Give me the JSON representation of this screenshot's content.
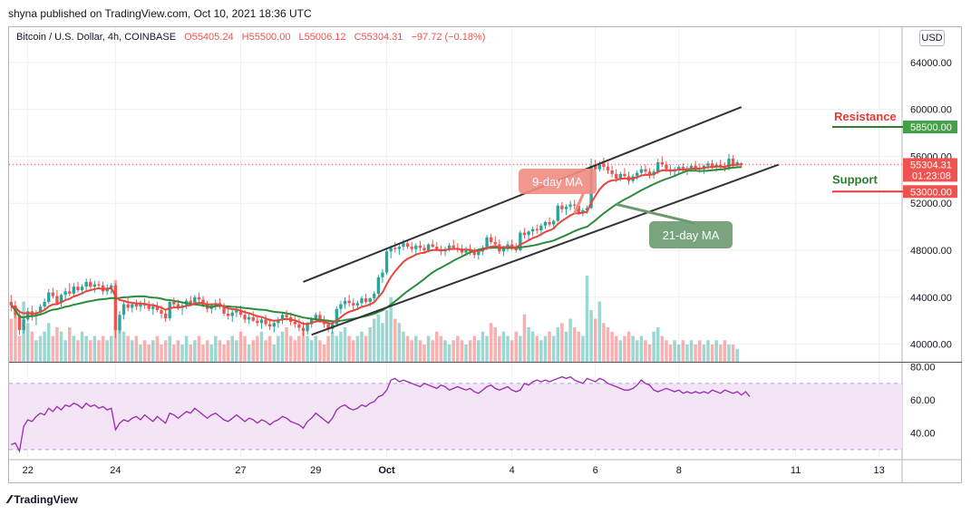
{
  "publisher_line": "shyna published on TradingView.com, Oct 10, 2021 18:36 UTC",
  "symbol": {
    "name": "Bitcoin / U.S. Dollar, 4h, COINBASE",
    "open": "O55405.24",
    "high": "H55500.00",
    "low": "L55006.12",
    "close": "C55304.31",
    "change": "−97.72 (−0.18%)"
  },
  "currency_button": "USD",
  "footer_brand": "TradingView",
  "colors": {
    "up": "#26a69a",
    "down": "#ef5350",
    "ma9": "#e8453c",
    "ma21": "#2e8b3e",
    "channel": "#333333",
    "rsi": "#9c27b0",
    "rsi_band": "#f3e5f5",
    "resistance": "#e53935",
    "support": "#2e7d32"
  },
  "chart_data": {
    "type": "candlestick",
    "title": "Bitcoin / U.S. Dollar, 4h, COINBASE",
    "y_ticks": [
      40000,
      44000,
      48000,
      52000,
      56000,
      60000,
      64000
    ],
    "y_tick_labels": [
      "40000.00",
      "44000.00",
      "48000.00",
      "52000.00",
      "56000.00",
      "60000.00",
      "64000.00"
    ],
    "ylim": [
      38500,
      67000
    ],
    "x_tick_labels": [
      "22",
      "24",
      "27",
      "29",
      "Oct",
      "4",
      "6",
      "8",
      "11",
      "13"
    ],
    "x_tick_index": [
      4,
      25,
      55,
      73,
      90,
      120,
      140,
      160,
      188,
      208
    ],
    "x_total_slots": 214,
    "candles": [
      [
        43600,
        44200,
        42800,
        43300
      ],
      [
        43300,
        43700,
        42200,
        42500
      ],
      [
        42500,
        42900,
        40800,
        41200
      ],
      [
        41200,
        42300,
        40900,
        42100
      ],
      [
        42100,
        43100,
        41900,
        42800
      ],
      [
        42800,
        43300,
        42000,
        42400
      ],
      [
        42400,
        42900,
        41600,
        42700
      ],
      [
        42700,
        43400,
        42500,
        43200
      ],
      [
        43200,
        43900,
        42900,
        43600
      ],
      [
        43600,
        44700,
        43400,
        44400
      ],
      [
        44400,
        44800,
        43900,
        44100
      ],
      [
        44100,
        44600,
        43300,
        43500
      ],
      [
        43500,
        44300,
        43200,
        44200
      ],
      [
        44200,
        44800,
        43800,
        44500
      ],
      [
        44500,
        45200,
        44100,
        44300
      ],
      [
        44300,
        45200,
        44000,
        44900
      ],
      [
        44900,
        45300,
        44400,
        44600
      ],
      [
        44600,
        45100,
        44300,
        44900
      ],
      [
        44900,
        45600,
        44600,
        45300
      ],
      [
        45300,
        45600,
        44700,
        44900
      ],
      [
        44900,
        45400,
        44400,
        45100
      ],
      [
        45100,
        45400,
        44800,
        45000
      ],
      [
        45000,
        45300,
        44200,
        44500
      ],
      [
        44500,
        45100,
        44200,
        44800
      ],
      [
        44800,
        45200,
        44300,
        45000
      ],
      [
        45000,
        45200,
        40500,
        41200
      ],
      [
        41200,
        42800,
        40900,
        42500
      ],
      [
        42500,
        43600,
        42100,
        43400
      ],
      [
        43400,
        43900,
        42800,
        43100
      ],
      [
        43100,
        43600,
        42700,
        43400
      ],
      [
        43400,
        43800,
        42900,
        43200
      ],
      [
        43200,
        43700,
        42800,
        43500
      ],
      [
        43500,
        43900,
        43000,
        43300
      ],
      [
        43300,
        43700,
        42800,
        43000
      ],
      [
        43000,
        43500,
        42500,
        43200
      ],
      [
        43200,
        43600,
        42700,
        42900
      ],
      [
        42900,
        43300,
        42200,
        42600
      ],
      [
        42600,
        43000,
        41900,
        42200
      ],
      [
        42200,
        43800,
        42000,
        43600
      ],
      [
        43600,
        44000,
        43100,
        43400
      ],
      [
        43400,
        43800,
        42900,
        43100
      ],
      [
        43100,
        43500,
        42500,
        43300
      ],
      [
        43300,
        43900,
        43000,
        43700
      ],
      [
        43700,
        44100,
        43300,
        43500
      ],
      [
        43500,
        44200,
        43300,
        44000
      ],
      [
        44000,
        44400,
        43500,
        43800
      ],
      [
        43800,
        44100,
        43100,
        43400
      ],
      [
        43400,
        43700,
        42700,
        43000
      ],
      [
        43000,
        43500,
        42600,
        43300
      ],
      [
        43300,
        43800,
        42900,
        43500
      ],
      [
        43500,
        43900,
        43000,
        43200
      ],
      [
        43200,
        43500,
        42400,
        42600
      ],
      [
        42600,
        43000,
        42100,
        42400
      ],
      [
        42400,
        42900,
        41900,
        42700
      ],
      [
        42700,
        43200,
        42300,
        42900
      ],
      [
        42900,
        43300,
        42300,
        42500
      ],
      [
        42500,
        42900,
        41800,
        42100
      ],
      [
        42100,
        42600,
        41700,
        42300
      ],
      [
        42300,
        42800,
        41900,
        42000
      ],
      [
        42000,
        42500,
        41500,
        41800
      ],
      [
        41800,
        42300,
        41300,
        42100
      ],
      [
        42100,
        42500,
        41500,
        41700
      ],
      [
        41700,
        42200,
        41200,
        41500
      ],
      [
        41500,
        42000,
        41000,
        41800
      ],
      [
        41800,
        42300,
        41400,
        42100
      ],
      [
        42100,
        42700,
        41700,
        42500
      ],
      [
        42500,
        42900,
        42000,
        42300
      ],
      [
        42300,
        42700,
        41600,
        41900
      ],
      [
        41900,
        42400,
        41400,
        41700
      ],
      [
        41700,
        42200,
        41100,
        41400
      ],
      [
        41400,
        41900,
        40700,
        41100
      ],
      [
        41100,
        41900,
        40800,
        41700
      ],
      [
        41700,
        42300,
        41400,
        42100
      ],
      [
        42100,
        42700,
        41800,
        42500
      ],
      [
        42500,
        42800,
        41800,
        42000
      ],
      [
        42000,
        42400,
        41400,
        41700
      ],
      [
        41700,
        42100,
        41000,
        41300
      ],
      [
        41300,
        41900,
        40900,
        41700
      ],
      [
        41700,
        43200,
        41500,
        43000
      ],
      [
        43000,
        43700,
        42600,
        43400
      ],
      [
        43400,
        44000,
        43000,
        43700
      ],
      [
        43700,
        44200,
        43200,
        43500
      ],
      [
        43500,
        43900,
        42900,
        43300
      ],
      [
        43300,
        43700,
        42900,
        43500
      ],
      [
        43500,
        44100,
        43200,
        43900
      ],
      [
        43900,
        44300,
        43400,
        43600
      ],
      [
        43600,
        44000,
        43200,
        43900
      ],
      [
        43900,
        44500,
        43700,
        44300
      ],
      [
        44300,
        45900,
        44100,
        45700
      ],
      [
        45700,
        46400,
        45200,
        46100
      ],
      [
        46100,
        48200,
        45900,
        47900
      ],
      [
        47900,
        48400,
        47300,
        48200
      ],
      [
        48200,
        48700,
        47800,
        48100
      ],
      [
        48100,
        48500,
        47600,
        48300
      ],
      [
        48300,
        48900,
        48000,
        48600
      ],
      [
        48600,
        48900,
        48100,
        48300
      ],
      [
        48300,
        48700,
        47800,
        48100
      ],
      [
        48100,
        48600,
        47700,
        48400
      ],
      [
        48400,
        48800,
        47900,
        48200
      ],
      [
        48200,
        48500,
        47700,
        48000
      ],
      [
        48000,
        48600,
        47800,
        48500
      ],
      [
        48500,
        48900,
        48200,
        48300
      ],
      [
        48300,
        48700,
        47900,
        48100
      ],
      [
        48100,
        48400,
        47600,
        47900
      ],
      [
        47900,
        48300,
        47500,
        48100
      ],
      [
        48100,
        48600,
        47900,
        48400
      ],
      [
        48400,
        48900,
        48100,
        48200
      ],
      [
        48200,
        48600,
        47800,
        48100
      ],
      [
        48100,
        48500,
        47600,
        47800
      ],
      [
        47800,
        48300,
        47500,
        48100
      ],
      [
        48100,
        48500,
        47600,
        47900
      ],
      [
        47900,
        48200,
        47300,
        47600
      ],
      [
        47600,
        48100,
        47200,
        47900
      ],
      [
        47900,
        48400,
        47600,
        48200
      ],
      [
        48200,
        49300,
        48000,
        49100
      ],
      [
        49100,
        49400,
        48500,
        48700
      ],
      [
        48700,
        49200,
        48200,
        48500
      ],
      [
        48500,
        48900,
        47700,
        47900
      ],
      [
        47900,
        48400,
        47500,
        48200
      ],
      [
        48200,
        48800,
        47900,
        48500
      ],
      [
        48500,
        48900,
        48000,
        48300
      ],
      [
        48300,
        48600,
        47800,
        48000
      ],
      [
        48000,
        49700,
        47900,
        49500
      ],
      [
        49500,
        49900,
        49000,
        49300
      ],
      [
        49300,
        49700,
        48900,
        49600
      ],
      [
        49600,
        50000,
        49200,
        49800
      ],
      [
        49800,
        50200,
        49400,
        49700
      ],
      [
        49700,
        50300,
        49400,
        50100
      ],
      [
        50100,
        50500,
        49800,
        50400
      ],
      [
        50400,
        50800,
        50000,
        50200
      ],
      [
        50200,
        50600,
        49900,
        50500
      ],
      [
        50500,
        52000,
        50400,
        51800
      ],
      [
        51800,
        52100,
        51200,
        51500
      ],
      [
        51500,
        51900,
        51000,
        51700
      ],
      [
        51700,
        52200,
        51400,
        51900
      ],
      [
        51900,
        52300,
        51500,
        51800
      ],
      [
        51800,
        51900,
        51000,
        51200
      ],
      [
        51200,
        51600,
        50900,
        51400
      ],
      [
        51400,
        51800,
        51100,
        51600
      ],
      [
        51600,
        55800,
        51500,
        55200
      ],
      [
        55200,
        55700,
        54600,
        54900
      ],
      [
        54900,
        55600,
        54700,
        55400
      ],
      [
        55400,
        55900,
        54800,
        55100
      ],
      [
        55100,
        55500,
        54500,
        54800
      ],
      [
        54800,
        55200,
        54200,
        54500
      ],
      [
        54500,
        54900,
        53800,
        54100
      ],
      [
        54100,
        54700,
        53900,
        54500
      ],
      [
        54500,
        55000,
        54100,
        54300
      ],
      [
        54300,
        54700,
        53600,
        53900
      ],
      [
        53900,
        54500,
        53700,
        54300
      ],
      [
        54300,
        54800,
        54000,
        54600
      ],
      [
        54600,
        55200,
        54300,
        54900
      ],
      [
        54900,
        55300,
        54400,
        54700
      ],
      [
        54700,
        55000,
        54100,
        54400
      ],
      [
        54400,
        54900,
        54100,
        54700
      ],
      [
        54700,
        55800,
        54500,
        55500
      ],
      [
        55500,
        56000,
        55100,
        55300
      ],
      [
        55300,
        55600,
        54700,
        54900
      ],
      [
        54900,
        55300,
        54400,
        54700
      ],
      [
        54700,
        55100,
        54300,
        54900
      ],
      [
        54900,
        55300,
        54500,
        55100
      ],
      [
        55100,
        55400,
        54600,
        54800
      ],
      [
        54800,
        55200,
        54400,
        55000
      ],
      [
        55000,
        55400,
        54700,
        55200
      ],
      [
        55200,
        55600,
        54800,
        55000
      ],
      [
        55000,
        55400,
        54600,
        54900
      ],
      [
        54900,
        55300,
        54500,
        55200
      ],
      [
        55200,
        55600,
        54900,
        55400
      ],
      [
        55400,
        55700,
        54900,
        55100
      ],
      [
        55100,
        55500,
        54700,
        55300
      ],
      [
        55300,
        55700,
        54900,
        55100
      ],
      [
        55100,
        55500,
        54700,
        55000
      ],
      [
        55000,
        56200,
        54800,
        55800
      ],
      [
        55800,
        56100,
        55100,
        55300
      ],
      [
        55300,
        55700,
        55000,
        55500
      ],
      [
        55405,
        55500,
        55006,
        55304
      ]
    ],
    "volume_rel": [
      0.5,
      0.55,
      0.3,
      0.7,
      0.45,
      0.35,
      0.25,
      0.3,
      0.35,
      0.45,
      0.3,
      0.4,
      0.35,
      0.25,
      0.4,
      0.3,
      0.25,
      0.35,
      0.3,
      0.25,
      0.3,
      0.25,
      0.3,
      0.25,
      0.3,
      0.95,
      0.4,
      0.35,
      0.3,
      0.25,
      0.3,
      0.2,
      0.25,
      0.2,
      0.25,
      0.3,
      0.2,
      0.25,
      0.3,
      0.2,
      0.25,
      0.2,
      0.3,
      0.2,
      0.25,
      0.3,
      0.2,
      0.25,
      0.2,
      0.3,
      0.25,
      0.2,
      0.25,
      0.3,
      0.25,
      0.35,
      0.3,
      0.2,
      0.25,
      0.3,
      0.35,
      0.25,
      0.3,
      0.2,
      0.3,
      0.35,
      0.4,
      0.3,
      0.25,
      0.3,
      0.35,
      0.3,
      0.25,
      0.3,
      0.25,
      0.2,
      0.3,
      0.35,
      0.3,
      0.35,
      0.4,
      0.3,
      0.25,
      0.3,
      0.35,
      0.3,
      0.4,
      0.5,
      0.55,
      0.45,
      0.6,
      0.75,
      0.5,
      0.45,
      0.35,
      0.3,
      0.25,
      0.3,
      0.25,
      0.2,
      0.3,
      0.25,
      0.35,
      0.3,
      0.25,
      0.2,
      0.25,
      0.3,
      0.25,
      0.2,
      0.25,
      0.3,
      0.25,
      0.35,
      0.3,
      0.45,
      0.4,
      0.3,
      0.35,
      0.3,
      0.25,
      0.35,
      0.3,
      0.55,
      0.4,
      0.35,
      0.3,
      0.25,
      0.3,
      0.35,
      0.3,
      0.4,
      0.45,
      0.35,
      0.5,
      0.4,
      0.35,
      0.3,
      1.0,
      0.6,
      0.5,
      0.7,
      0.45,
      0.4,
      0.35,
      0.3,
      0.25,
      0.3,
      0.35,
      0.3,
      0.25,
      0.3,
      0.25,
      0.2,
      0.35,
      0.4,
      0.3,
      0.25,
      0.2,
      0.25,
      0.2,
      0.25,
      0.2,
      0.25,
      0.2,
      0.25,
      0.2,
      0.25,
      0.2,
      0.25,
      0.2,
      0.25,
      0.2,
      0.2,
      0.15
    ],
    "rsi_ticks": [
      40,
      60,
      80
    ],
    "rsi_ylim": [
      25,
      82
    ],
    "rsi_band": [
      30,
      70
    ],
    "rsi": [
      33,
      34,
      29,
      44,
      48,
      47,
      50,
      52,
      51,
      55,
      53,
      56,
      54,
      57,
      56,
      58,
      57,
      55,
      58,
      56,
      57,
      55,
      56,
      54,
      55,
      42,
      46,
      48,
      47,
      49,
      50,
      48,
      51,
      49,
      47,
      50,
      48,
      46,
      52,
      51,
      49,
      51,
      53,
      52,
      55,
      53,
      51,
      49,
      51,
      52,
      50,
      48,
      47,
      49,
      51,
      49,
      47,
      49,
      48,
      46,
      48,
      47,
      45,
      47,
      48,
      50,
      49,
      47,
      46,
      45,
      43,
      47,
      49,
      52,
      50,
      48,
      46,
      49,
      54,
      56,
      57,
      55,
      54,
      55,
      57,
      56,
      58,
      59,
      62,
      63,
      66,
      72,
      73,
      71,
      72,
      71,
      70,
      69,
      68,
      70,
      69,
      68,
      67,
      69,
      68,
      66,
      67,
      68,
      67,
      66,
      67,
      65,
      64,
      66,
      68,
      69,
      67,
      66,
      67,
      68,
      66,
      65,
      66,
      70,
      69,
      71,
      72,
      71,
      72,
      71,
      72,
      73,
      74,
      73,
      74,
      72,
      71,
      70,
      73,
      72,
      71,
      73,
      72,
      70,
      69,
      68,
      67,
      66,
      66,
      67,
      69,
      72,
      70,
      69,
      66,
      65,
      66,
      67,
      66,
      65,
      66,
      64,
      65,
      64,
      65,
      64,
      65,
      64,
      66,
      65,
      64,
      66,
      65,
      64,
      65,
      63,
      65,
      62
    ],
    "ma9_label": "9-day MA",
    "ma21_label": "21-day MA",
    "resistance_label": "Resistance",
    "support_label": "Support",
    "price_labels": [
      {
        "value": 58500,
        "text": "58500.00",
        "color": "#43a047"
      },
      {
        "value": 55304.31,
        "text": "55304.31",
        "color": "#ef5350"
      },
      {
        "value": 53000,
        "text": "53000.00",
        "color": "#ef5350"
      }
    ],
    "countdown": "01:23:08",
    "channel_upper": [
      [
        70,
        45300
      ],
      [
        175,
        60200
      ]
    ],
    "channel_lower": [
      [
        72,
        40800
      ],
      [
        184,
        55300
      ]
    ],
    "rsi_tick_labels": [
      "40.00",
      "60.00",
      "80.00"
    ]
  }
}
